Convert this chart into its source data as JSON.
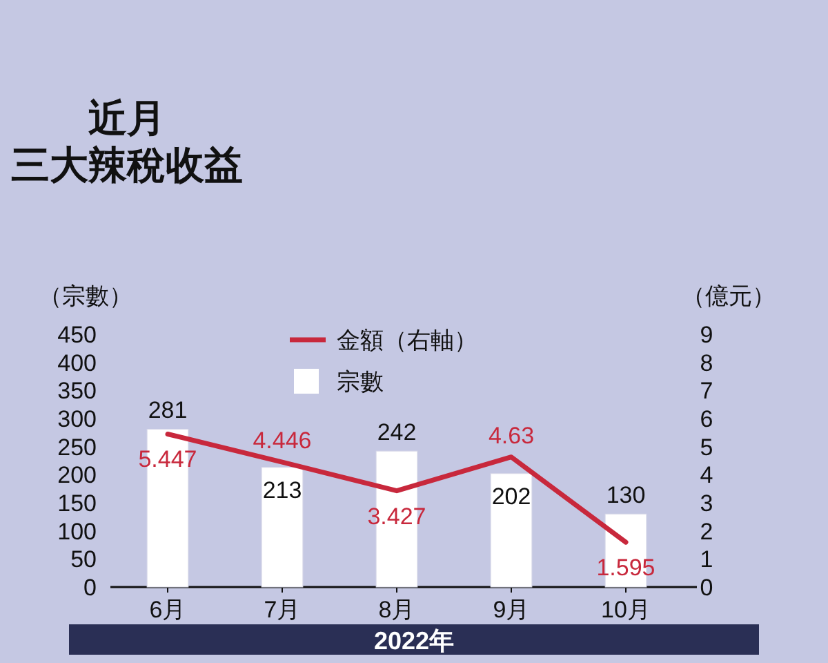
{
  "chart_data": {
    "type": "bar",
    "title": "近月三大辣稅收益",
    "xlabel": "2022年",
    "ylabel": "（宗數）",
    "y2label": "（億元）",
    "categories": [
      "6月",
      "7月",
      "8月",
      "9月",
      "10月"
    ],
    "series": [
      {
        "name": "金額（右軸）",
        "type": "line",
        "axis": "y2",
        "color": "#c8283c",
        "values": [
          5.447,
          4.446,
          3.427,
          4.63,
          1.595
        ]
      },
      {
        "name": "宗數",
        "color": "#ffffff",
        "values": [
          281,
          213,
          242,
          202,
          130
        ]
      }
    ],
    "ylim": [
      0,
      450
    ],
    "yticks": [
      0,
      50,
      100,
      150,
      200,
      250,
      300,
      350,
      400,
      450
    ],
    "y2lim": [
      0,
      9
    ],
    "y2ticks": [
      0,
      1,
      2,
      3,
      4,
      5,
      6,
      7,
      8,
      9
    ],
    "data_labels": true,
    "legend": "top",
    "grid": false,
    "marker": "none"
  }
}
